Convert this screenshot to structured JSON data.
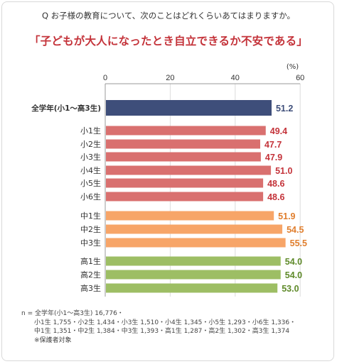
{
  "question": "Q お子様の教育について、次のことはどれくらいあてはまりますか。",
  "headline": "「子どもが大人になったとき自立できるか不安である」",
  "chart_data": {
    "type": "bar",
    "orientation": "horizontal",
    "unit": "(%)",
    "xlim": [
      0,
      60
    ],
    "xticks": [
      0,
      20,
      40,
      60
    ],
    "grid": true,
    "groups": [
      {
        "color": "#3e4e7a",
        "categories": [
          "全学年(小1〜高3生)"
        ],
        "values": [
          51.2
        ],
        "labels": [
          "51.2"
        ]
      },
      {
        "color": "#d9706f",
        "categories": [
          "小1生",
          "小2生",
          "小3生",
          "小4生",
          "小5生",
          "小6生"
        ],
        "values": [
          49.4,
          47.7,
          47.9,
          51.0,
          48.6,
          48.6
        ],
        "labels": [
          "49.4",
          "47.7",
          "47.9",
          "51.0",
          "48.6",
          "48.6"
        ]
      },
      {
        "color": "#f7a568",
        "categories": [
          "中1生",
          "中2生",
          "中3生"
        ],
        "values": [
          51.9,
          54.5,
          55.5
        ],
        "labels": [
          "51.9",
          "54.5",
          "55.5"
        ]
      },
      {
        "color": "#9dbe64",
        "categories": [
          "高1生",
          "高2生",
          "高3生"
        ],
        "values": [
          54.0,
          54.0,
          53.0
        ],
        "labels": [
          "54.0",
          "54.0",
          "53.0"
        ]
      }
    ]
  },
  "notes": [
    "n = 全学年(小1〜高3生) 16,776・",
    "小1生 1,755・小2生 1,434・小3生 1,510・小4生 1,345・小5生 1,293・小6生 1,336・",
    "中1生 1,351・中2生 1,384・中3生 1,393・高1生 1,287・高2生 1,302・高3生 1,374",
    "※保護者対象"
  ]
}
